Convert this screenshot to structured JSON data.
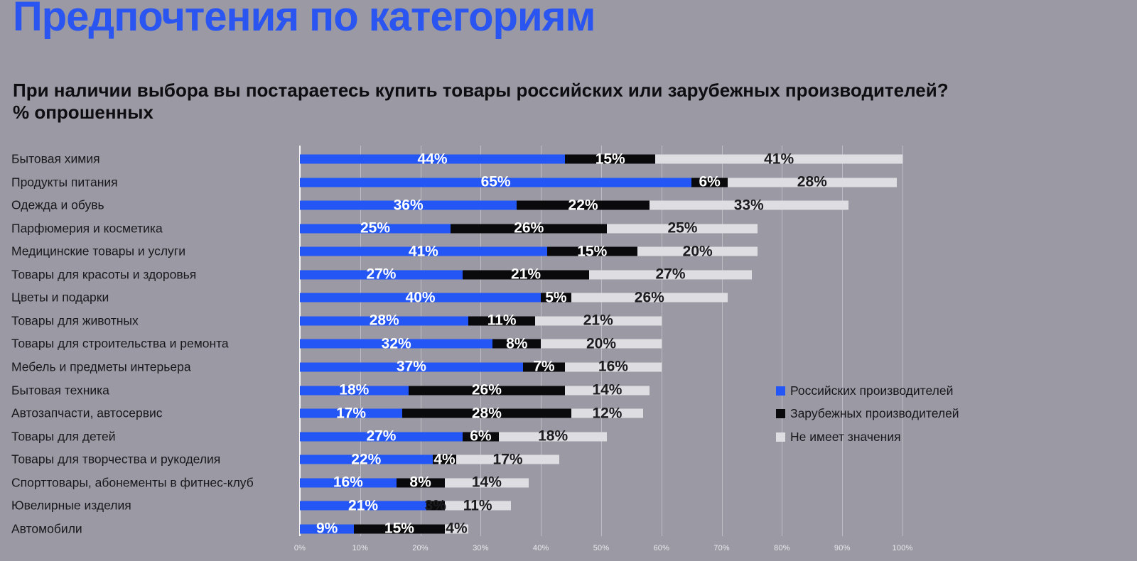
{
  "title": "Предпочтения по категориям",
  "subtitle_line1": "При наличии выбора вы постараетесь купить товары российских или зарубежных производителей?",
  "subtitle_line2": "% опрошенных",
  "colors": {
    "background": "#9b99a3",
    "title_blue": "#2b55f0",
    "text_dark": "#0e0e12",
    "bar_blue": "#2456f5",
    "bar_black": "#0a0a0c",
    "bar_light": "#dedde2",
    "grid_line": "rgba(255,255,255,0.35)",
    "axis_line": "rgba(255,255,255,0.92)",
    "tick_label": "#e9e8ef",
    "value_label_light": "#ffffff",
    "value_label_dark": "#1c1c1f"
  },
  "legend": [
    {
      "label": "Российских производителей",
      "color": "#2456f5"
    },
    {
      "label": "Зарубежных производителей",
      "color": "#0a0a0c"
    },
    {
      "label": "Не имеет значения",
      "color": "#dedde2"
    }
  ],
  "chart_data": {
    "type": "bar",
    "orientation": "horizontal",
    "stacked": true,
    "unit": "%",
    "title": "Предпочтения по категориям",
    "xlabel": "",
    "ylabel": "",
    "xlim": [
      0,
      100
    ],
    "grid": true,
    "legend_position": "right-middle",
    "x_ticks": [
      "0%",
      "10%",
      "20%",
      "30%",
      "40%",
      "50%",
      "60%",
      "70%",
      "80%",
      "90%",
      "100%"
    ],
    "categories": [
      "Бытовая химия",
      "Продукты питания",
      "Одежда и обувь",
      "Парфюмерия и косметика",
      "Медицинские товары и услуги",
      "Товары для красоты и здоровья",
      "Цветы и подарки",
      "Товары для животных",
      "Товары для строительства и ремонта",
      "Мебель и предметы интерьера",
      "Бытовая техника",
      "Автозапчасти, автосервис",
      "Товары для детей",
      "Товары для творчества и рукоделия",
      "Спорттовары, абонементы в фитнес-клуб",
      "Ювелирные изделия",
      "Автомобили"
    ],
    "series": [
      {
        "name": "Российских производителей",
        "color": "#2456f5",
        "values": [
          44,
          65,
          36,
          25,
          41,
          27,
          40,
          28,
          32,
          37,
          18,
          17,
          27,
          22,
          16,
          21,
          9
        ]
      },
      {
        "name": "Зарубежных производителей",
        "color": "#0a0a0c",
        "values": [
          15,
          6,
          22,
          26,
          15,
          21,
          5,
          11,
          8,
          7,
          26,
          28,
          6,
          4,
          8,
          3,
          15
        ]
      },
      {
        "name": "Не имеет значения",
        "color": "#dedde2",
        "values": [
          41,
          28,
          33,
          25,
          20,
          27,
          26,
          21,
          20,
          16,
          14,
          12,
          18,
          17,
          14,
          11,
          4
        ]
      }
    ]
  }
}
